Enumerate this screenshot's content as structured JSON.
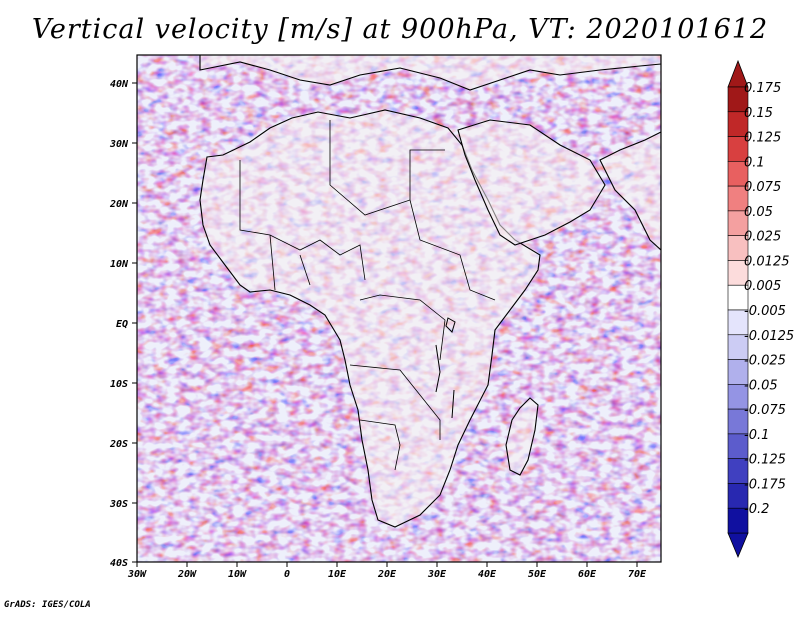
{
  "title": "Vertical velocity [m/s] at 900hPa, VT: 2020101612",
  "footer": "GrADS: IGES/COLA",
  "axes": {
    "x_ticks": [
      "30W",
      "20W",
      "10W",
      "0",
      "10E",
      "20E",
      "30E",
      "40E",
      "50E",
      "60E",
      "70E"
    ],
    "y_ticks": [
      "40N",
      "30N",
      "20N",
      "10N",
      "EQ",
      "10S",
      "20S",
      "30S",
      "40S"
    ]
  },
  "colorbar": {
    "labels": [
      "0.175",
      "0.15",
      "0.125",
      "0.1",
      "0.075",
      "0.05",
      "0.025",
      "0.0125",
      "0.005",
      "-0.005",
      "-0.0125",
      "-0.025",
      "-0.05",
      "-0.075",
      "-0.1",
      "-0.125",
      "-0.175",
      "-0.2"
    ],
    "colors": [
      "#a01818",
      "#c02828",
      "#d84040",
      "#e86060",
      "#f08080",
      "#f4a0a0",
      "#f8c0c0",
      "#fcdcdc",
      "#ffffff",
      "#e4e4fc",
      "#ccccf4",
      "#b0b0ec",
      "#9494e4",
      "#7878d8",
      "#5c5ccc",
      "#4040c0",
      "#2828b0",
      "#1010a0"
    ]
  }
}
